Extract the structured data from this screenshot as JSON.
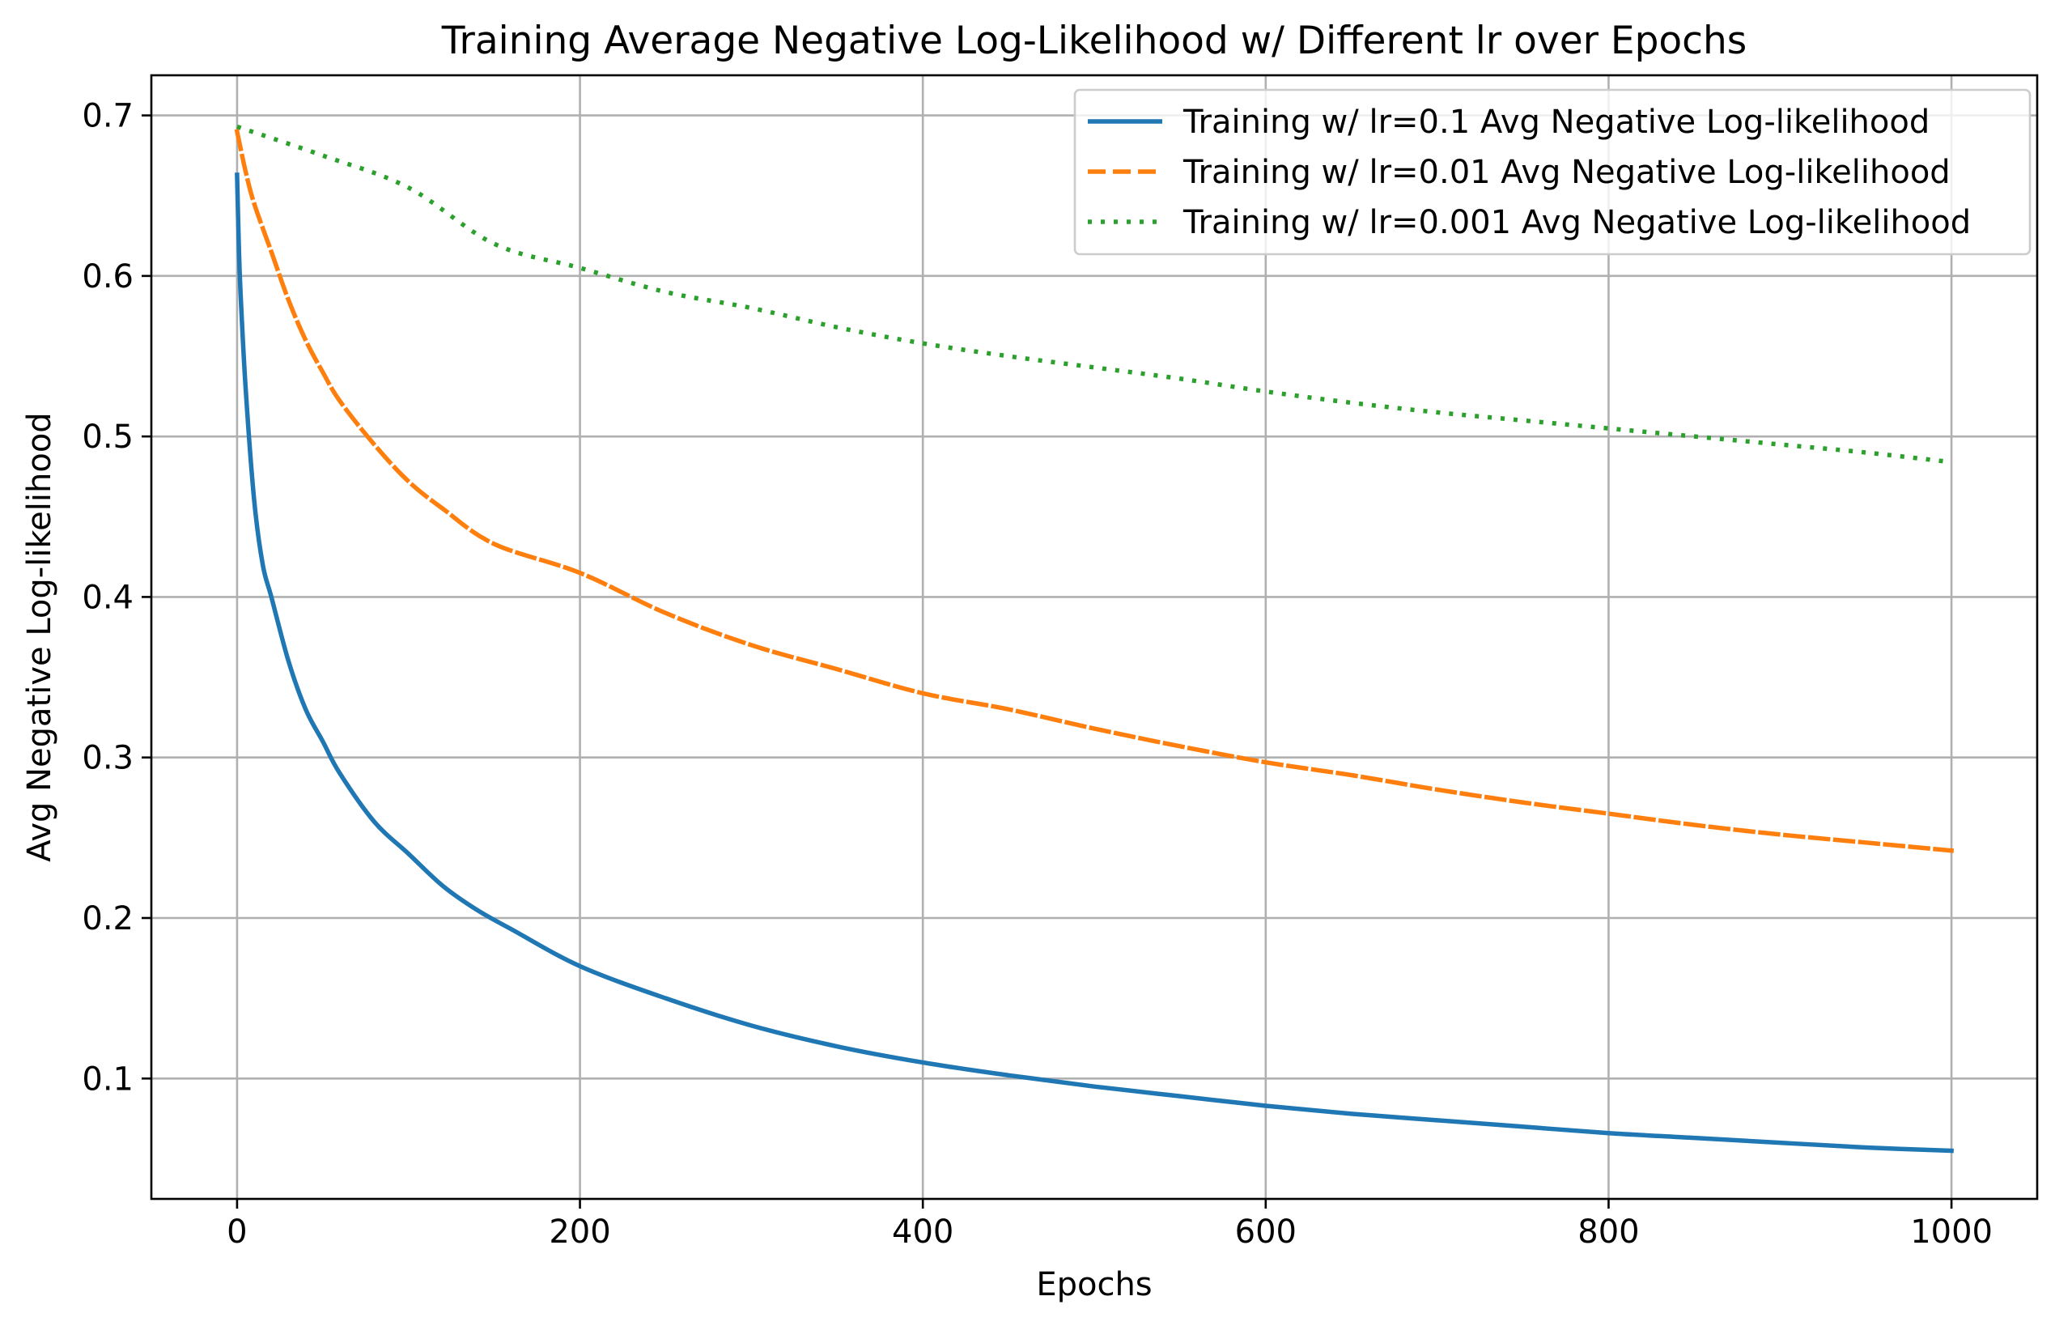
{
  "chart_data": {
    "type": "line",
    "title": "Training Average Negative Log-Likelihood w/ Different lr over Epochs",
    "xlabel": "Epochs",
    "ylabel": "Avg Negative Log-likelihood",
    "xlim": [
      -50,
      1050
    ],
    "ylim": [
      0.025,
      0.725
    ],
    "xticks": [
      0,
      200,
      400,
      600,
      800,
      1000
    ],
    "yticks": [
      0.1,
      0.2,
      0.3,
      0.4,
      0.5,
      0.6,
      0.7
    ],
    "xtick_labels": [
      "0",
      "200",
      "400",
      "600",
      "800",
      "1000"
    ],
    "ytick_labels": [
      "0.1",
      "0.2",
      "0.3",
      "0.4",
      "0.5",
      "0.6",
      "0.7"
    ],
    "grid": true,
    "legend_position": "top-right",
    "series": [
      {
        "name": "Training w/ lr=0.1 Avg Negative Log-likelihood",
        "color": "#1f77b4",
        "style": "solid",
        "x": [
          0,
          1,
          2,
          5,
          10,
          15,
          20,
          30,
          40,
          50,
          60,
          80,
          100,
          120,
          140,
          160,
          200,
          250,
          300,
          350,
          400,
          450,
          500,
          550,
          600,
          650,
          700,
          750,
          800,
          850,
          900,
          950,
          1000
        ],
        "y": [
          0.663,
          0.62,
          0.59,
          0.53,
          0.46,
          0.42,
          0.4,
          0.36,
          0.33,
          0.31,
          0.29,
          0.26,
          0.24,
          0.22,
          0.205,
          0.193,
          0.17,
          0.15,
          0.133,
          0.12,
          0.11,
          0.102,
          0.095,
          0.089,
          0.083,
          0.078,
          0.074,
          0.07,
          0.066,
          0.063,
          0.06,
          0.057,
          0.055
        ]
      },
      {
        "name": "Training w/ lr=0.01 Avg Negative Log-likelihood",
        "color": "#ff7f0e",
        "style": "dashed",
        "x": [
          0,
          5,
          10,
          20,
          30,
          40,
          50,
          60,
          80,
          100,
          120,
          150,
          200,
          250,
          300,
          350,
          400,
          450,
          500,
          550,
          600,
          650,
          700,
          750,
          800,
          850,
          900,
          950,
          1000
        ],
        "y": [
          0.69,
          0.665,
          0.645,
          0.615,
          0.585,
          0.56,
          0.54,
          0.522,
          0.495,
          0.472,
          0.455,
          0.433,
          0.415,
          0.39,
          0.37,
          0.355,
          0.34,
          0.33,
          0.318,
          0.307,
          0.297,
          0.289,
          0.28,
          0.272,
          0.265,
          0.258,
          0.252,
          0.247,
          0.242
        ]
      },
      {
        "name": "Training w/ lr=0.001 Avg Negative Log-likelihood",
        "color": "#2ca02c",
        "style": "dotted",
        "x": [
          0,
          50,
          100,
          150,
          200,
          250,
          300,
          350,
          400,
          450,
          500,
          550,
          600,
          650,
          700,
          750,
          800,
          850,
          900,
          950,
          1000
        ],
        "y": [
          0.693,
          0.675,
          0.655,
          0.62,
          0.605,
          0.59,
          0.58,
          0.568,
          0.558,
          0.55,
          0.543,
          0.536,
          0.528,
          0.521,
          0.515,
          0.51,
          0.505,
          0.5,
          0.495,
          0.49,
          0.484
        ]
      }
    ]
  }
}
